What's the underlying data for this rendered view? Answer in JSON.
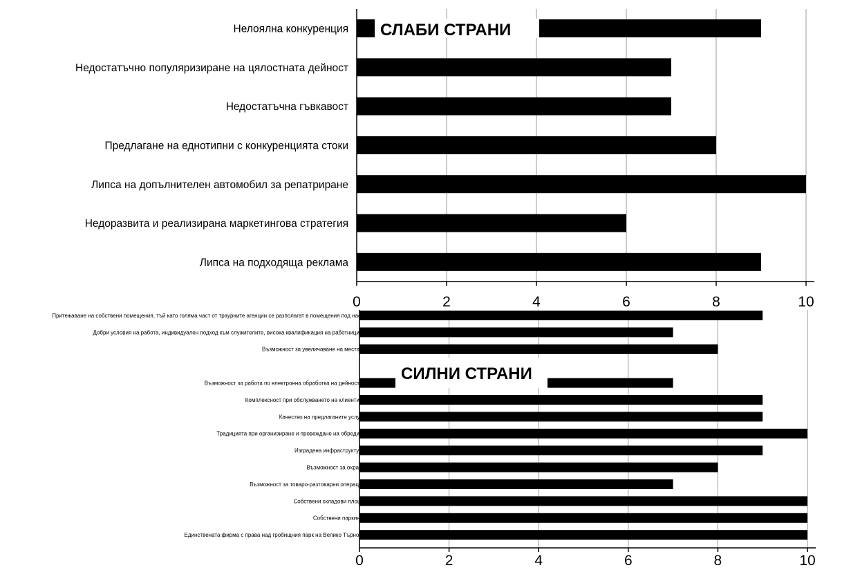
{
  "chart_data": [
    {
      "type": "bar",
      "orientation": "horizontal",
      "title": "",
      "overlay_label": "СЛАБИ СТРАНИ",
      "categories": [
        "Нелоялна конкуренция",
        "Недостатъчно популяризиране на цялостната дейност",
        "Недостатъчна гъвкавост",
        "Предлагане на еднотипни с конкуренцията стоки",
        "Липса на допълнителен автомобил за репатриране",
        "Недоразвита и реализирана маркетингова стратегия",
        "Липса на подходяща реклама"
      ],
      "values": [
        9,
        7,
        7,
        8,
        10,
        6,
        9
      ],
      "xlim": [
        0,
        10
      ],
      "xticks": [
        "0",
        "2",
        "4",
        "6",
        "8",
        "10"
      ],
      "grid": true,
      "bar_color": "#000000"
    },
    {
      "type": "bar",
      "orientation": "horizontal",
      "title": "",
      "overlay_label": "СИЛНИ СТРАНИ",
      "categories": [
        "Притежаване на собствени помещения, тъй като голяма част от траурните агенции се разполагат в помещения под наем",
        "Добри условия на работа, индивидуален подход към служителите, висока квалификация на работниците",
        "Възможност за увеличаване на местата",
        "",
        "Възможност за работа по електронна обработка на дейността",
        "Комплексност при обслужването на клиентите",
        "Качество на предлаганите услуги",
        "Традицията при организиране и провеждане на обредите",
        "Изградена инфраструктура",
        "Възможност за охрана",
        "Възможност за товаро-разтоварни операции",
        "Собствени складови площи",
        "Собствени паркинги",
        "Единствената фирма с права над гробищния парк на Велико Търново"
      ],
      "values": [
        9,
        7,
        8,
        null,
        7,
        9,
        9,
        10,
        9,
        8,
        7,
        10,
        10,
        10
      ],
      "xlim": [
        0,
        10
      ],
      "xticks": [
        "0",
        "2",
        "4",
        "6",
        "8",
        "10"
      ],
      "grid": true,
      "bar_color": "#000000"
    }
  ]
}
